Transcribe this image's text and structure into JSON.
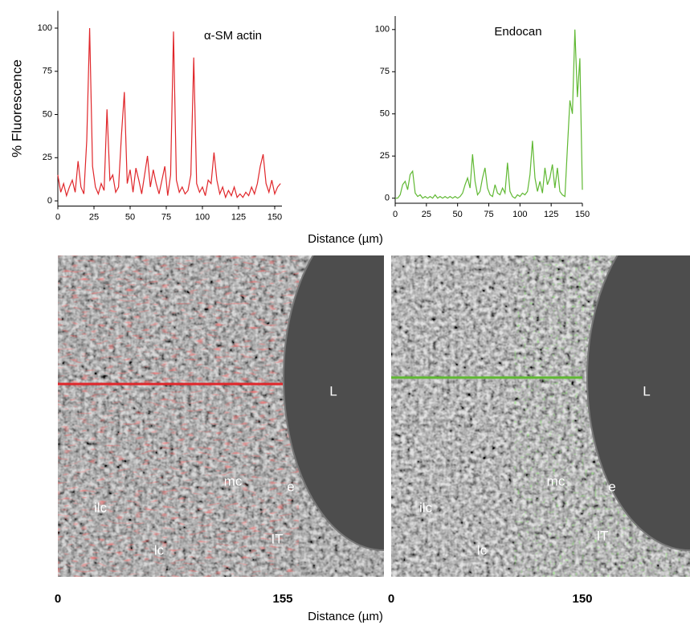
{
  "chart_data": [
    {
      "type": "line",
      "title": "α-SM actin",
      "ylabel": "% Fluorescence",
      "x": [
        0,
        2,
        4,
        6,
        8,
        10,
        12,
        14,
        16,
        18,
        20,
        22,
        24,
        26,
        28,
        30,
        32,
        34,
        36,
        38,
        40,
        42,
        44,
        46,
        48,
        50,
        52,
        54,
        56,
        58,
        60,
        62,
        64,
        66,
        68,
        70,
        72,
        74,
        76,
        78,
        80,
        82,
        84,
        86,
        88,
        90,
        92,
        94,
        96,
        98,
        100,
        102,
        104,
        106,
        108,
        110,
        112,
        114,
        116,
        118,
        120,
        122,
        124,
        126,
        128,
        130,
        132,
        134,
        136,
        138,
        140,
        142,
        144,
        146,
        148,
        150,
        152,
        154
      ],
      "series": [
        {
          "color": "#e0262a",
          "values": [
            15,
            5,
            10,
            3,
            8,
            12,
            5,
            23,
            8,
            4,
            35,
            100,
            20,
            8,
            4,
            10,
            6,
            53,
            12,
            15,
            5,
            8,
            38,
            63,
            10,
            18,
            5,
            19,
            12,
            4,
            15,
            26,
            8,
            18,
            10,
            4,
            12,
            20,
            3,
            15,
            98,
            12,
            5,
            8,
            4,
            6,
            15,
            83,
            10,
            5,
            8,
            3,
            12,
            10,
            28,
            12,
            4,
            8,
            2,
            6,
            3,
            8,
            2,
            4,
            2,
            5,
            3,
            8,
            4,
            10,
            20,
            27,
            10,
            5,
            12,
            4,
            8,
            10
          ]
        }
      ],
      "xlim": [
        0,
        155
      ],
      "xticks": [
        0,
        25,
        50,
        75,
        100,
        125,
        150
      ],
      "ylim": [
        -3,
        110
      ],
      "yticks": [
        0,
        25,
        50,
        75,
        100
      ]
    },
    {
      "type": "line",
      "title": "Endocan",
      "x": [
        0,
        2,
        4,
        6,
        8,
        10,
        12,
        14,
        16,
        18,
        20,
        22,
        24,
        26,
        28,
        30,
        32,
        34,
        36,
        38,
        40,
        42,
        44,
        46,
        48,
        50,
        52,
        54,
        56,
        58,
        60,
        62,
        64,
        66,
        68,
        70,
        72,
        74,
        76,
        78,
        80,
        82,
        84,
        86,
        88,
        90,
        92,
        94,
        96,
        98,
        100,
        102,
        104,
        106,
        108,
        110,
        112,
        114,
        116,
        118,
        120,
        122,
        124,
        126,
        128,
        130,
        132,
        134,
        136,
        138,
        140,
        142,
        144,
        146,
        148,
        150
      ],
      "series": [
        {
          "color": "#5fb832",
          "values": [
            0,
            0,
            2,
            8,
            10,
            5,
            14,
            16,
            3,
            1,
            2,
            0,
            1,
            0,
            1,
            0,
            2,
            0,
            1,
            0,
            1,
            0,
            1,
            0,
            1,
            0,
            1,
            3,
            8,
            12,
            6,
            26,
            10,
            2,
            4,
            12,
            18,
            6,
            2,
            1,
            8,
            3,
            2,
            6,
            3,
            21,
            4,
            1,
            0,
            2,
            1,
            3,
            2,
            4,
            14,
            34,
            12,
            4,
            10,
            3,
            18,
            8,
            12,
            20,
            6,
            18,
            4,
            2,
            1,
            30,
            58,
            50,
            100,
            60,
            83,
            5
          ]
        }
      ],
      "xlim": [
        0,
        150
      ],
      "xticks": [
        0,
        25,
        50,
        75,
        100,
        125,
        150
      ],
      "ylim": [
        -3,
        108
      ],
      "yticks": [
        0,
        25,
        50,
        75,
        100
      ]
    }
  ],
  "figure": {
    "xlabel_top": "Distance (µm)",
    "xlabel_bottom": "Distance (µm)",
    "images": [
      {
        "line_color": "#e0262a",
        "labels": [
          "L",
          "ilc",
          "lc",
          "mc",
          "e",
          "IT"
        ],
        "scale": [
          0,
          155
        ]
      },
      {
        "line_color": "#5fb832",
        "labels": [
          "L",
          "ilc",
          "lc",
          "mc",
          "e",
          "IT"
        ],
        "scale": [
          0,
          150
        ]
      }
    ]
  }
}
